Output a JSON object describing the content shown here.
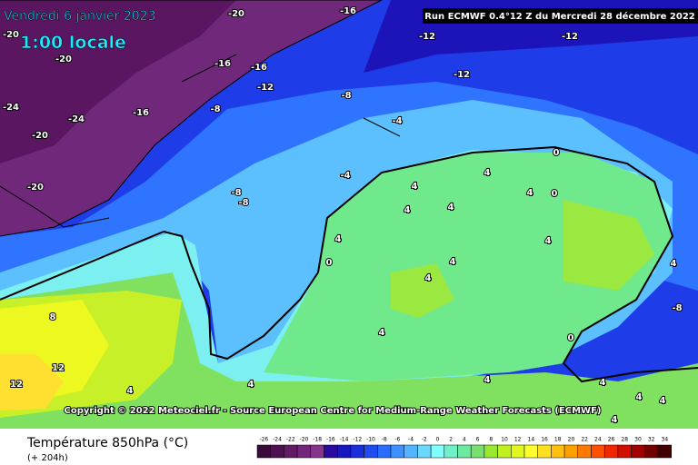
{
  "header": {
    "date": "Vendredi 6 janvier 2023",
    "time": "1:00 locale",
    "run": "Run ECMWF 0.4°12 Z du Mercredi 28 décembre 2022"
  },
  "copyright": "Copyright © 2022 Meteociel.fr - Source European Centre for Medium-Range Weather Forecasts (ECMWF)",
  "map": {
    "contour_labels": [
      -20,
      -16,
      -20,
      -20,
      -12,
      -12,
      -16,
      -16,
      -12,
      -12,
      -24,
      -24,
      -16,
      -8,
      -8,
      -4,
      -20,
      -20,
      -4,
      -8,
      -8,
      4,
      0,
      4,
      4,
      0,
      4,
      4,
      4,
      0,
      4,
      4,
      4,
      4,
      8,
      -8,
      12,
      12,
      4,
      0,
      4,
      4,
      4,
      4,
      4,
      4,
      4
    ]
  },
  "legend": {
    "title": "Température 850hPa (°C)",
    "subtitle": "(+ 204h)",
    "ticks": [
      -26,
      -24,
      -22,
      -20,
      -18,
      -16,
      -14,
      -12,
      -10,
      -8,
      -6,
      -4,
      -2,
      0,
      2,
      4,
      6,
      8,
      10,
      12,
      14,
      16,
      18,
      20,
      22,
      24,
      26,
      28,
      30,
      32,
      34
    ],
    "colors": [
      "#3a0a3a",
      "#4e1050",
      "#621a66",
      "#74267a",
      "#86348c",
      "#2a0aa0",
      "#1818c0",
      "#1a2edc",
      "#1e4cf0",
      "#2a6cff",
      "#3c90ff",
      "#54b4ff",
      "#6ad8ff",
      "#80ffff",
      "#70f0c8",
      "#6ce8a0",
      "#78e070",
      "#98e830",
      "#c0f020",
      "#e0f820",
      "#ffff30",
      "#ffe020",
      "#ffc010",
      "#ffa000",
      "#ff7800",
      "#ff5000",
      "#f02800",
      "#d01000",
      "#a00000",
      "#700000",
      "#400000"
    ]
  }
}
